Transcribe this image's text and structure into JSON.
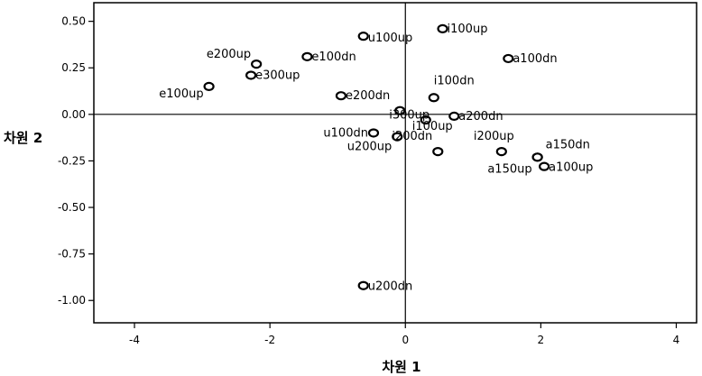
{
  "chart_data": {
    "type": "scatter",
    "title": "",
    "xlabel": "차원 1",
    "ylabel": "차원 2",
    "xlim": [
      -4.6,
      4.3
    ],
    "ylim": [
      -1.12,
      0.6
    ],
    "x_ticks": [
      -4,
      -2,
      0,
      2,
      4
    ],
    "x_tick_labels": [
      "-4",
      "-2",
      "0",
      "2",
      "4"
    ],
    "y_ticks": [
      0.5,
      0.25,
      0.0,
      -0.25,
      -0.5,
      -0.75,
      -1.0
    ],
    "y_tick_labels": [
      "0.50",
      "0.25",
      "0.00",
      "-0.25",
      "-0.50",
      "-0.75",
      "-1.00"
    ],
    "grid": false,
    "reference_lines": {
      "x": 0,
      "y": 0
    },
    "points": [
      {
        "label": "i100up",
        "x": 0.55,
        "y": 0.46
      },
      {
        "label": "u100up",
        "x": -0.62,
        "y": 0.42
      },
      {
        "label": "e100dn",
        "x": -1.45,
        "y": 0.31
      },
      {
        "label": "a100dn",
        "x": 1.52,
        "y": 0.3
      },
      {
        "label": "e200up",
        "x": -2.2,
        "y": 0.27
      },
      {
        "label": "e300up",
        "x": -2.28,
        "y": 0.21
      },
      {
        "label": "e100up",
        "x": -2.9,
        "y": 0.15
      },
      {
        "label": "e200dn",
        "x": -0.95,
        "y": 0.1
      },
      {
        "label": "i100dn",
        "x": 0.42,
        "y": 0.09
      },
      {
        "label": "i300up",
        "x": -0.08,
        "y": 0.02
      },
      {
        "label": "a200dn",
        "x": 0.72,
        "y": -0.01
      },
      {
        "label": "i100up",
        "x": 0.3,
        "y": -0.03
      },
      {
        "label": "u100dn",
        "x": -0.47,
        "y": -0.1
      },
      {
        "label": "u200up",
        "x": -0.12,
        "y": -0.12
      },
      {
        "label": "i200dn",
        "x": 0.48,
        "y": -0.2
      },
      {
        "label": "i200up",
        "x": 1.42,
        "y": -0.2
      },
      {
        "label": "a150dn",
        "x": 1.95,
        "y": -0.23
      },
      {
        "label": "a150up",
        "x": 1.95,
        "y": -0.23
      },
      {
        "label": "a100up",
        "x": 2.05,
        "y": -0.28
      },
      {
        "label": "u200dn",
        "x": -0.62,
        "y": -0.92
      }
    ]
  }
}
